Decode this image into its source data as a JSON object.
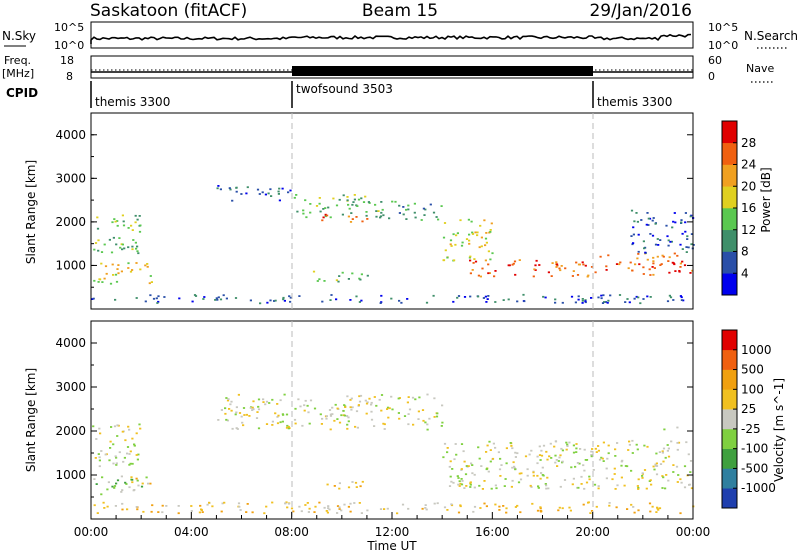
{
  "header": {
    "station": "Saskatoon (fitACF)",
    "beam": "Beam 15",
    "date": "29/Jan/2016"
  },
  "status_panel": {
    "nsky_label": "N.Sky",
    "nsky_ticks": [
      "10^5",
      "10^0"
    ],
    "nsearch_label": "N.Search",
    "nsearch_ticks": [
      "10^5",
      "10^0"
    ],
    "freq_label_1": "Freq.",
    "freq_label_2": "[MHz]",
    "freq_ticks": [
      "18",
      "8"
    ],
    "nave_label": "Nave",
    "nave_ticks": [
      "60",
      "0"
    ],
    "cpid_label": "CPID",
    "cpid_segments": [
      {
        "name": "themis 3300",
        "start_hour": 0,
        "end_hour": 8
      },
      {
        "name": "twofsound 3503",
        "start_hour": 8,
        "end_hour": 20
      },
      {
        "name": "themis 3300",
        "start_hour": 20,
        "end_hour": 24
      }
    ]
  },
  "chart_data": [
    {
      "type": "heatmap",
      "panel": "power",
      "xlabel": "",
      "ylabel": "Slant Range [km]",
      "xlim": [
        0,
        24
      ],
      "ylim": [
        0,
        4500
      ],
      "yticks": [
        "1000",
        "2000",
        "3000",
        "4000"
      ],
      "colorbar_label": "Power [dB]",
      "colorbar_ticks": [
        "4",
        "8",
        "12",
        "16",
        "20",
        "24",
        "28"
      ],
      "colors": [
        "#0000ee",
        "#2a4fa8",
        "#3f8f6a",
        "#5ac850",
        "#e0d020",
        "#f0a020",
        "#f06010",
        "#e00000"
      ],
      "scatter_regions": [
        {
          "t0": 0.0,
          "t1": 2.4,
          "r0": 600,
          "r1": 1100,
          "level": 4
        },
        {
          "t0": 0.0,
          "t1": 2.0,
          "r0": 1300,
          "r1": 2200,
          "level": 3
        },
        {
          "t0": 5.0,
          "t1": 8.0,
          "r0": 2500,
          "r1": 2850,
          "level": 1
        },
        {
          "t0": 8.0,
          "t1": 11.5,
          "r0": 2100,
          "r1": 2650,
          "level": 3
        },
        {
          "t0": 9.0,
          "t1": 11.0,
          "r0": 2000,
          "r1": 2200,
          "level": 6
        },
        {
          "t0": 8.8,
          "t1": 11.0,
          "r0": 650,
          "r1": 900,
          "level": 3
        },
        {
          "t0": 11.5,
          "t1": 14.0,
          "r0": 2050,
          "r1": 2500,
          "level": 2
        },
        {
          "t0": 14.0,
          "t1": 16.0,
          "r0": 1100,
          "r1": 2100,
          "level": 4
        },
        {
          "t0": 15.0,
          "t1": 20.0,
          "r0": 750,
          "r1": 1150,
          "level": 6
        },
        {
          "t0": 20.0,
          "t1": 24.0,
          "r0": 800,
          "r1": 1300,
          "level": 6
        },
        {
          "t0": 21.5,
          "t1": 24.0,
          "r0": 1300,
          "r1": 2300,
          "level": 1
        },
        {
          "t0": 0.0,
          "t1": 24.0,
          "r0": 150,
          "r1": 350,
          "level": 1
        }
      ]
    },
    {
      "type": "heatmap",
      "panel": "velocity",
      "xlabel": "Time UT",
      "ylabel": "Slant Range [km]",
      "xlim": [
        0,
        24
      ],
      "ylim": [
        0,
        4500
      ],
      "xticks": [
        "00:00",
        "04:00",
        "08:00",
        "12:00",
        "16:00",
        "20:00",
        "00:00"
      ],
      "yticks": [
        "1000",
        "2000",
        "3000",
        "4000"
      ],
      "colorbar_label": "Velocity [m s^-1]",
      "colorbar_ticks": [
        "1000",
        "500",
        "100",
        "25",
        "-25",
        "-100",
        "-500",
        "-1000"
      ],
      "colors": [
        "#1f3fae",
        "#2f7f9f",
        "#3fa03f",
        "#7fd040",
        "#c8c8c0",
        "#f0c020",
        "#f0a010",
        "#f06010",
        "#e00000"
      ],
      "scatter_regions": [
        {
          "t0": 0.0,
          "t1": 2.2,
          "r0": 550,
          "r1": 1000,
          "level": 3
        },
        {
          "t0": 0.0,
          "t1": 2.0,
          "r0": 1200,
          "r1": 2200,
          "level": 4
        },
        {
          "t0": 1.5,
          "t1": 2.4,
          "r0": 800,
          "r1": 1050,
          "level": 5
        },
        {
          "t0": 5.0,
          "t1": 14.0,
          "r0": 2050,
          "r1": 2850,
          "level": 4
        },
        {
          "t0": 9.0,
          "t1": 11.0,
          "r0": 700,
          "r1": 900,
          "level": 5
        },
        {
          "t0": 14.0,
          "t1": 24.0,
          "r0": 700,
          "r1": 1800,
          "level": 4
        },
        {
          "t0": 14.2,
          "t1": 15.0,
          "r0": 800,
          "r1": 1100,
          "level": 3
        },
        {
          "t0": 22.8,
          "t1": 23.4,
          "r0": 1950,
          "r1": 2100,
          "level": 3
        },
        {
          "t0": 0.0,
          "t1": 24.0,
          "r0": 150,
          "r1": 400,
          "level": 5
        }
      ]
    }
  ]
}
